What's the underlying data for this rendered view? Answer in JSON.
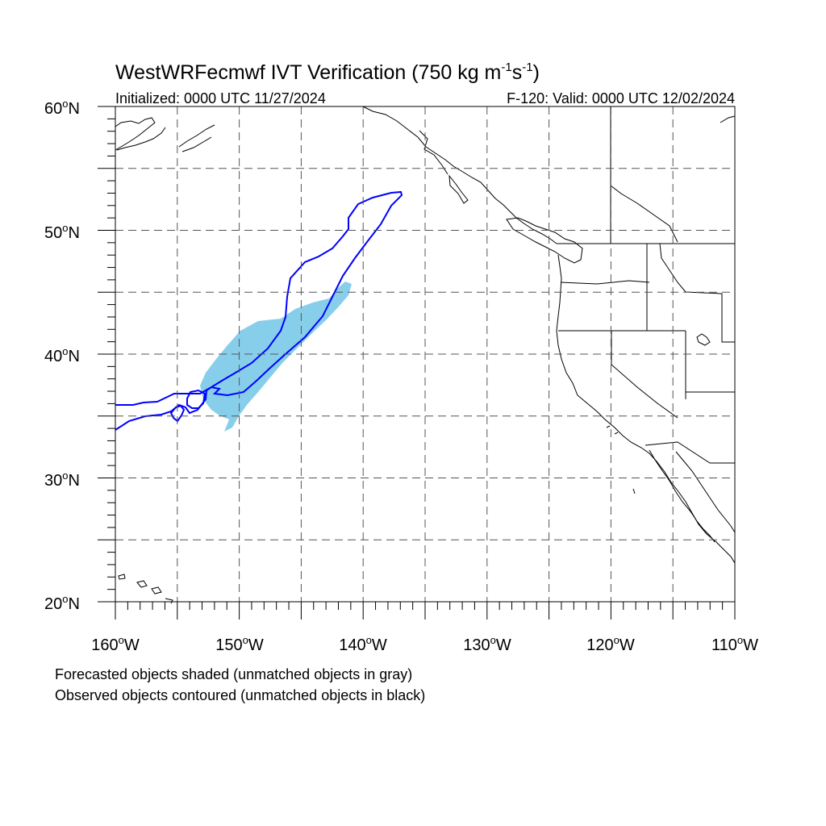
{
  "title": {
    "main": "WestWRFecmwf IVT Verification (750 kg m",
    "exp1": "-1",
    "mid": "s",
    "exp2": "-1",
    "close": ")"
  },
  "subtitle": {
    "initialized": "Initialized: 0000 UTC 11/27/2024",
    "valid": "F-120: Valid: 0000 UTC 12/02/2024"
  },
  "axes": {
    "lat_labels": [
      {
        "value": 60,
        "text": "60",
        "deg": "o",
        "hemi": "N"
      },
      {
        "value": 50,
        "text": "50",
        "deg": "o",
        "hemi": "N"
      },
      {
        "value": 40,
        "text": "40",
        "deg": "o",
        "hemi": "N"
      },
      {
        "value": 30,
        "text": "30",
        "deg": "o",
        "hemi": "N"
      },
      {
        "value": 20,
        "text": "20",
        "deg": "o",
        "hemi": "N"
      }
    ],
    "lon_labels": [
      {
        "value": -160,
        "text": "160",
        "deg": "o",
        "hemi": "W"
      },
      {
        "value": -150,
        "text": "150",
        "deg": "o",
        "hemi": "W"
      },
      {
        "value": -140,
        "text": "140",
        "deg": "o",
        "hemi": "W"
      },
      {
        "value": -130,
        "text": "130",
        "deg": "o",
        "hemi": "W"
      },
      {
        "value": -120,
        "text": "120",
        "deg": "o",
        "hemi": "W"
      },
      {
        "value": -110,
        "text": "110",
        "deg": "o",
        "hemi": "W"
      }
    ],
    "lon_range": [
      -160,
      -110
    ],
    "lat_range": [
      20,
      60
    ],
    "gridlines": "dashed, every 5 degrees"
  },
  "colors": {
    "forecast_fill": "#87ceeb",
    "observed_contour": "#0000ff",
    "grid": "#555555",
    "coast": "#000000"
  },
  "notes": {
    "forecast": "Forecasted objects shaded (unmatched objects in gray)",
    "observed": "Observed objects contoured (unmatched objects in black)"
  }
}
